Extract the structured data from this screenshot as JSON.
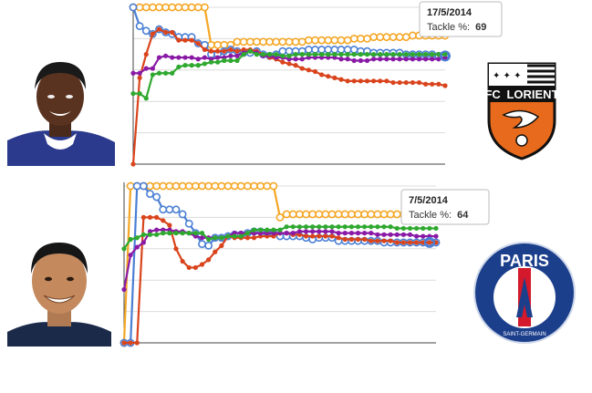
{
  "charts": {
    "top": {
      "tooltip": {
        "date": "17/5/2014",
        "metric_label": "Tackle %:",
        "metric_value": "69"
      },
      "team_logo": {
        "name": "FC Lorient",
        "line1": "FC",
        "line2": "LORIENT"
      }
    },
    "bottom": {
      "tooltip": {
        "date": "7/5/2014",
        "metric_label": "Tackle %:",
        "metric_value": "64"
      },
      "team_logo": {
        "name": "Paris Saint-Germain",
        "line1": "PARIS",
        "line2": "SAINT-GERMAIN"
      }
    }
  },
  "colors": {
    "orange": "#f5a623",
    "blue": "#4a7fd4",
    "red": "#d9441c",
    "purple": "#8a1aa6",
    "green": "#2ea82e",
    "grid": "#dcdcdc",
    "axis": "#444444",
    "lorient_orange": "#e86a1c",
    "psg_navy": "#1c3f8c",
    "psg_red": "#d3192b"
  },
  "chart_data": [
    {
      "type": "line",
      "x": [
        1,
        2,
        3,
        4,
        5,
        6,
        7,
        8,
        9,
        10,
        11,
        12,
        13,
        14,
        15,
        16,
        17,
        18,
        19,
        20,
        21,
        22,
        23,
        24,
        25,
        26,
        27,
        28,
        29,
        30,
        31,
        32,
        33,
        34,
        35,
        36,
        37,
        38,
        39,
        40,
        41,
        42,
        43,
        44,
        45,
        46,
        47,
        48,
        49
      ],
      "ylim": [
        0,
        100
      ],
      "grid": true,
      "highlight": {
        "series": "blue",
        "x": 49,
        "label": "17/5/2014",
        "metric": "Tackle %",
        "value": 69
      },
      "series": [
        {
          "color": "orange",
          "values": [
            100,
            100,
            100,
            100,
            100,
            100,
            100,
            100,
            100,
            100,
            100,
            100,
            76,
            76,
            76,
            76,
            78,
            78,
            78,
            78,
            78,
            78,
            78,
            78,
            78,
            78,
            78,
            79,
            79,
            79,
            79,
            79,
            79,
            79,
            80,
            80,
            80,
            81,
            81,
            81,
            81,
            81,
            81,
            82,
            82,
            82,
            82,
            82,
            82
          ]
        },
        {
          "color": "blue",
          "values": [
            100,
            88,
            85,
            83,
            86,
            84,
            83,
            81,
            81,
            81,
            77,
            76,
            70,
            70,
            72,
            73,
            72,
            71,
            71,
            72,
            70,
            69,
            70,
            72,
            72,
            72,
            72,
            73,
            73,
            73,
            73,
            73,
            73,
            73,
            73,
            72,
            72,
            71,
            71,
            71,
            71,
            71,
            70,
            70,
            70,
            70,
            70,
            69,
            69
          ]
        },
        {
          "color": "red",
          "values": [
            0,
            55,
            70,
            83,
            86,
            84,
            84,
            79,
            79,
            79,
            77,
            73,
            72,
            72,
            72,
            73,
            72,
            73,
            73,
            72,
            70,
            68,
            67,
            65,
            64,
            63,
            61,
            60,
            59,
            57,
            56,
            55,
            54,
            53,
            53,
            53,
            53,
            53,
            53,
            53,
            52,
            52,
            52,
            52,
            52,
            51,
            51,
            51,
            50
          ]
        },
        {
          "color": "purple",
          "values": [
            58,
            58,
            61,
            61,
            68,
            69,
            68,
            68,
            68,
            68,
            67,
            68,
            67,
            68,
            68,
            69,
            69,
            71,
            72,
            71,
            69,
            69,
            68,
            68,
            67,
            67,
            67,
            68,
            68,
            68,
            68,
            68,
            67,
            67,
            66,
            66,
            66,
            67,
            67,
            67,
            67,
            67,
            67,
            67,
            67,
            67,
            67,
            67,
            68
          ]
        },
        {
          "color": "green",
          "values": [
            45,
            45,
            42,
            57,
            58,
            58,
            58,
            62,
            63,
            63,
            63,
            64,
            65,
            65,
            66,
            66,
            66,
            70,
            72,
            70,
            70,
            70,
            70,
            69,
            69,
            70,
            70,
            70,
            70,
            70,
            70,
            70,
            70,
            70,
            70,
            70,
            70,
            70,
            70,
            70,
            70,
            70,
            70,
            70,
            70,
            70,
            70,
            70,
            70
          ]
        }
      ]
    },
    {
      "type": "line",
      "x": [
        1,
        2,
        3,
        4,
        5,
        6,
        7,
        8,
        9,
        10,
        11,
        12,
        13,
        14,
        15,
        16,
        17,
        18,
        19,
        20,
        21,
        22,
        23,
        24,
        25,
        26,
        27,
        28,
        29,
        30,
        31,
        32,
        33,
        34,
        35,
        36,
        37,
        38,
        39,
        40,
        41,
        42,
        43,
        44,
        45,
        46,
        47,
        48,
        49
      ],
      "ylim": [
        0,
        100
      ],
      "grid": true,
      "highlight": {
        "series": "blue",
        "x": 48,
        "label": "7/5/2014",
        "metric": "Tackle %",
        "value": 64
      },
      "series": [
        {
          "color": "orange",
          "values": [
            0,
            100,
            100,
            100,
            100,
            100,
            100,
            100,
            100,
            100,
            100,
            100,
            100,
            100,
            100,
            100,
            100,
            100,
            100,
            100,
            100,
            100,
            100,
            100,
            80,
            82,
            82,
            82,
            82,
            82,
            82,
            82,
            82,
            82,
            82,
            82,
            82,
            82,
            82,
            82,
            82,
            82,
            82,
            82,
            82,
            82,
            82,
            82,
            82
          ]
        },
        {
          "color": "blue",
          "values": [
            0,
            0,
            100,
            100,
            95,
            93,
            85,
            85,
            85,
            82,
            76,
            70,
            63,
            62,
            67,
            67,
            68,
            69,
            69,
            70,
            71,
            71,
            70,
            70,
            68,
            68,
            68,
            68,
            67,
            66,
            67,
            67,
            67,
            65,
            65,
            65,
            65,
            65,
            65,
            65,
            64,
            64,
            64,
            64,
            64,
            64,
            64,
            64,
            64
          ]
        },
        {
          "color": "red",
          "values": [
            0,
            0,
            0,
            80,
            80,
            80,
            78,
            75,
            60,
            52,
            48,
            48,
            50,
            53,
            58,
            62,
            68,
            67,
            67,
            67,
            67,
            68,
            68,
            68,
            70,
            70,
            69,
            69,
            68,
            68,
            68,
            68,
            68,
            67,
            66,
            66,
            66,
            66,
            65,
            65,
            65,
            65,
            64,
            64,
            64,
            64,
            64,
            64,
            64
          ]
        },
        {
          "color": "purple",
          "values": [
            34,
            56,
            61,
            64,
            71,
            72,
            72,
            72,
            71,
            71,
            70,
            68,
            67,
            67,
            67,
            67,
            68,
            70,
            70,
            70,
            70,
            70,
            70,
            70,
            70,
            70,
            70,
            71,
            71,
            71,
            71,
            71,
            71,
            70,
            70,
            70,
            70,
            70,
            70,
            69,
            69,
            69,
            69,
            69,
            69,
            68,
            68,
            68,
            68
          ]
        },
        {
          "color": "green",
          "values": [
            60,
            66,
            67,
            69,
            69,
            69,
            70,
            70,
            70,
            70,
            70,
            70,
            70,
            66,
            67,
            67,
            68,
            68,
            68,
            70,
            72,
            72,
            72,
            72,
            72,
            74,
            74,
            74,
            74,
            74,
            74,
            74,
            74,
            74,
            74,
            74,
            74,
            74,
            74,
            74,
            74,
            74,
            73,
            73,
            73,
            73,
            73,
            73,
            73
          ]
        }
      ]
    }
  ]
}
